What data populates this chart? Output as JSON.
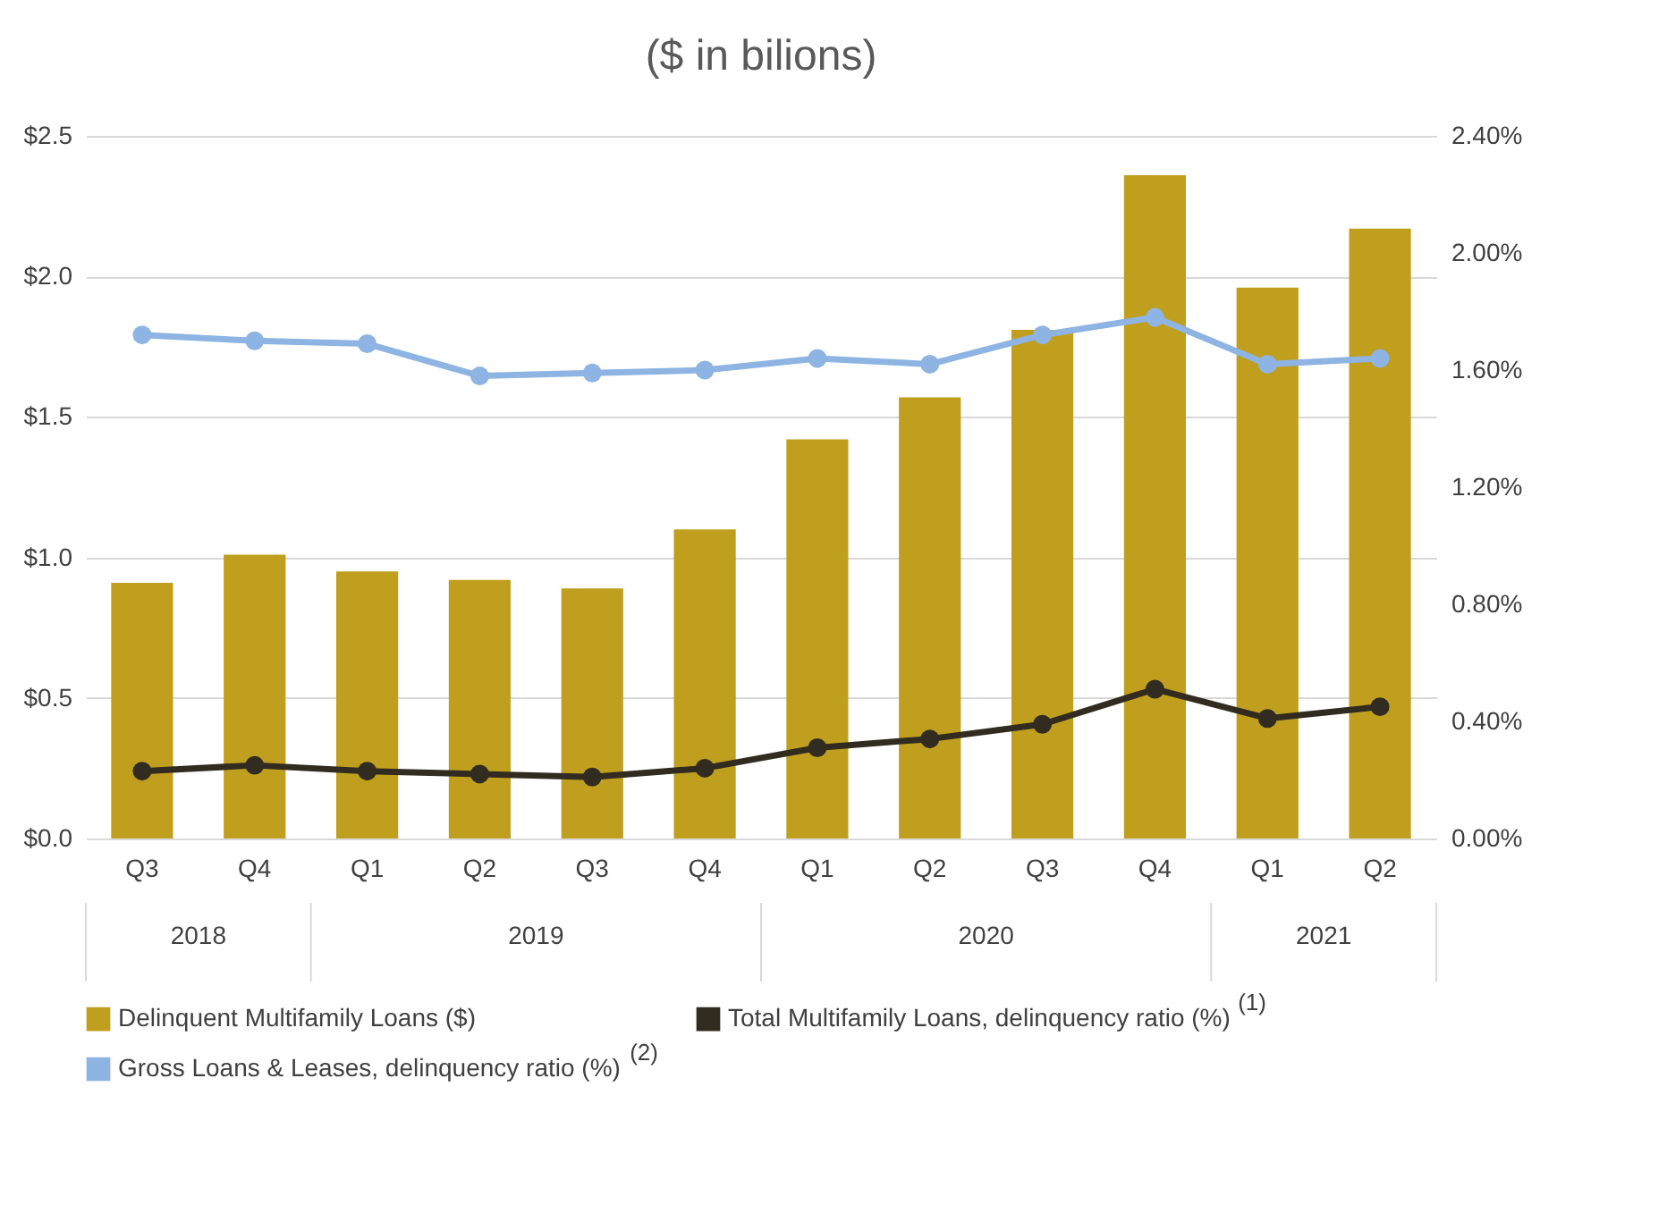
{
  "chart_data": {
    "type": "bar",
    "title": "($ in bilions)",
    "categories": [
      "Q3",
      "Q4",
      "Q1",
      "Q2",
      "Q3",
      "Q4",
      "Q1",
      "Q2",
      "Q3",
      "Q4",
      "Q1",
      "Q2"
    ],
    "series": [
      {
        "name": "Delinquent Multifamily Loans ($)",
        "color": "#c09f1f",
        "values": [
          0.91,
          1.01,
          0.95,
          0.92,
          0.89,
          1.1,
          1.42,
          1.57,
          1.81,
          2.36,
          1.96,
          2.17
        ]
      },
      {
        "name": "Total Multifamily Loans, delinquency ratio (%)",
        "type": "line",
        "axis": "y2",
        "color": "#312c1f",
        "values": [
          0.23,
          0.25,
          0.23,
          0.22,
          0.21,
          0.24,
          0.31,
          0.34,
          0.39,
          0.51,
          0.41,
          0.45
        ]
      },
      {
        "name": "Gross Loans & Leases, delinquency ratio (%)",
        "type": "line",
        "axis": "y2",
        "color": "#8db4e2",
        "values": [
          1.72,
          1.7,
          1.69,
          1.58,
          1.59,
          1.6,
          1.64,
          1.62,
          1.72,
          1.78,
          1.62,
          1.64
        ]
      }
    ],
    "ylim": [
      0,
      2.5
    ],
    "yticks": [
      {
        "value": 0,
        "label": "$0.0"
      },
      {
        "value": 0.5,
        "label": "$0.5"
      },
      {
        "value": 1,
        "label": "$1.0"
      },
      {
        "value": 1.5,
        "label": "$1.5"
      },
      {
        "value": 2,
        "label": "$2.0"
      },
      {
        "value": 2.5,
        "label": "$2.5"
      }
    ],
    "y2lim": [
      0,
      2.4
    ],
    "y2ticks": [
      {
        "value": 0,
        "label": "0.00%"
      },
      {
        "value": 0.4,
        "label": "0.40%"
      },
      {
        "value": 0.8,
        "label": "0.80%"
      },
      {
        "value": 1.2,
        "label": "1.20%"
      },
      {
        "value": 1.6,
        "label": "1.60%"
      },
      {
        "value": 2,
        "label": "2.00%"
      },
      {
        "value": 2.4,
        "label": "2.40%"
      }
    ],
    "annotations": [
      "2018",
      "2019",
      "2020",
      "2021",
      "(1)",
      "(2)"
    ],
    "grid": "y",
    "legend": "bottom",
    "marker": "circle",
    "line_style": "solid"
  }
}
